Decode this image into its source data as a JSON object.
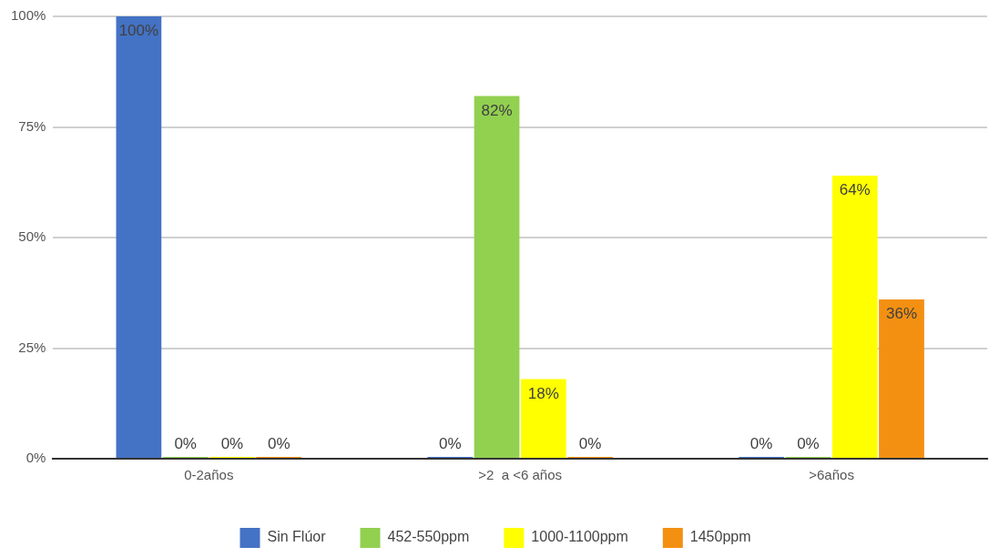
{
  "chart_data": {
    "type": "bar",
    "categories": [
      "0-2años",
      ">2  a <6 años",
      ">6años"
    ],
    "series": [
      {
        "name": "Sin Flúor",
        "color": "#4472c4",
        "values": [
          100,
          0,
          0
        ],
        "value_labels": [
          "100%",
          "0%",
          "0%"
        ]
      },
      {
        "name": "452-550ppm",
        "color": "#92d050",
        "values": [
          0,
          82,
          0
        ],
        "value_labels": [
          "0%",
          "82%",
          "0%"
        ]
      },
      {
        "name": "1000-1100ppm",
        "color": "#ffff00",
        "values": [
          0,
          18,
          64
        ],
        "value_labels": [
          "0%",
          "18%",
          "64%"
        ]
      },
      {
        "name": "1450ppm",
        "color": "#f39012",
        "values": [
          0,
          0,
          36
        ],
        "value_labels": [
          "0%",
          "0%",
          "36%"
        ]
      }
    ],
    "ylim": [
      0,
      100
    ],
    "yticks": [
      {
        "value": 0,
        "label": "0%"
      },
      {
        "value": 25,
        "label": "25%"
      },
      {
        "value": 50,
        "label": "50%"
      },
      {
        "value": 75,
        "label": "75%"
      },
      {
        "value": 100,
        "label": "100%"
      }
    ],
    "grid": "y",
    "legend": "bottom"
  }
}
